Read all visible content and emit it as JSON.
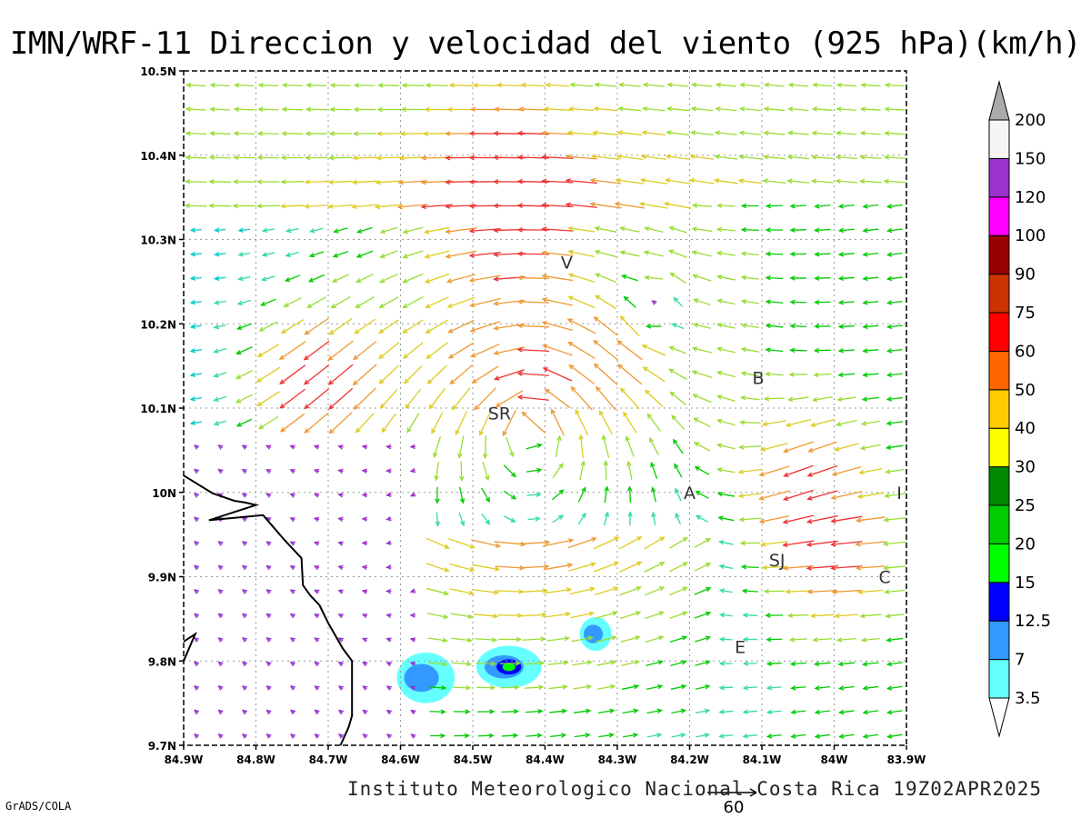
{
  "title": "IMN/WRF-11 Direccion y velocidad del viento (925 hPa)(km/h)",
  "footer": "Instituto Meteorologico Nacional Costa Rica 19Z02APR2025",
  "credit": "GrADS/COLA",
  "reference_vector": {
    "label": "60",
    "speed_kmh": 60
  },
  "map": {
    "lon_range": [
      -84.9,
      -83.9
    ],
    "lat_range": [
      9.7,
      10.5
    ],
    "lon_ticks": [
      {
        "lon": -84.9,
        "label": "84.9W"
      },
      {
        "lon": -84.8,
        "label": "84.8W"
      },
      {
        "lon": -84.7,
        "label": "84.7W"
      },
      {
        "lon": -84.6,
        "label": "84.6W"
      },
      {
        "lon": -84.5,
        "label": "84.5W"
      },
      {
        "lon": -84.4,
        "label": "84.4W"
      },
      {
        "lon": -84.3,
        "label": "84.3W"
      },
      {
        "lon": -84.2,
        "label": "84.2W"
      },
      {
        "lon": -84.1,
        "label": "84.1W"
      },
      {
        "lon": -84.0,
        "label": "84W"
      },
      {
        "lon": -83.9,
        "label": "83.9W"
      }
    ],
    "lat_ticks": [
      {
        "lat": 9.7,
        "label": "9.7N"
      },
      {
        "lat": 9.8,
        "label": "9.8N"
      },
      {
        "lat": 9.9,
        "label": "9.9N"
      },
      {
        "lat": 10.0,
        "label": "10N"
      },
      {
        "lat": 10.1,
        "label": "10.1N"
      },
      {
        "lat": 10.2,
        "label": "10.2N"
      },
      {
        "lat": 10.3,
        "label": "10.3N"
      },
      {
        "lat": 10.4,
        "label": "10.4N"
      },
      {
        "lat": 10.5,
        "label": "10.5N"
      }
    ],
    "grid": "dotted",
    "cities": [
      {
        "label": "V",
        "lon": -84.37,
        "lat": 10.273
      },
      {
        "label": "SR",
        "lon": -84.463,
        "lat": 10.094
      },
      {
        "label": "B",
        "lon": -84.105,
        "lat": 10.136
      },
      {
        "label": "A",
        "lon": -84.2,
        "lat": 10.0
      },
      {
        "label": "I",
        "lon": -83.91,
        "lat": 10.0
      },
      {
        "label": "SJ",
        "lon": -84.079,
        "lat": 9.92
      },
      {
        "label": "C",
        "lon": -83.93,
        "lat": 9.9
      },
      {
        "label": "E",
        "lon": -84.13,
        "lat": 9.817
      }
    ],
    "coastline": [
      [
        [
          -84.9,
          10.02
        ],
        [
          -84.86,
          9.999
        ],
        [
          -84.83,
          9.99
        ],
        [
          -84.815,
          9.988
        ],
        [
          -84.8,
          9.985
        ],
        [
          -84.865,
          9.967
        ],
        [
          -84.79,
          9.973
        ],
        [
          -84.76,
          9.943
        ],
        [
          -84.737,
          9.922
        ],
        [
          -84.735,
          9.89
        ],
        [
          -84.725,
          9.878
        ],
        [
          -84.712,
          9.866
        ],
        [
          -84.7,
          9.845
        ],
        [
          -84.68,
          9.815
        ],
        [
          -84.667,
          9.8
        ],
        [
          -84.667,
          9.735
        ],
        [
          -84.672,
          9.721
        ],
        [
          -84.683,
          9.7
        ]
      ],
      [
        [
          -84.9,
          9.823
        ],
        [
          -84.884,
          9.832
        ],
        [
          -84.9,
          9.8
        ]
      ]
    ],
    "speed_field": {
      "base_speed_kmh": 18,
      "features": [
        {
          "type": "cyclone",
          "lon": -84.42,
          "lat": 10.08,
          "strength": 46,
          "radius_deg": 0.17
        },
        {
          "type": "anticyclone",
          "lon": -84.26,
          "lat": 10.2,
          "strength": 20,
          "radius_deg": 0.06
        },
        {
          "type": "cyclone",
          "lon": -84.24,
          "lat": 10.24,
          "strength": 16,
          "radius_deg": 0.05
        }
      ],
      "jets": [
        {
          "lon": -84.45,
          "lat": 10.35,
          "speed_kmh": 62,
          "direction": "from east"
        },
        {
          "lon": -84.72,
          "lat": 10.13,
          "speed_kmh": 60,
          "direction": "from northeast"
        },
        {
          "lon": -84.05,
          "lat": 10.02,
          "speed_kmh": 46,
          "direction": "from northeast"
        },
        {
          "lon": -84.0,
          "lat": 9.93,
          "speed_kmh": 44,
          "direction": "from east"
        }
      ],
      "calm_zone": {
        "lon_max": -84.58,
        "lat_max": 10.07,
        "speed_kmh": 4
      }
    },
    "low_speed_shaded": [
      {
        "lon": -84.565,
        "lat": 9.78,
        "rx_deg": 0.04,
        "ry_deg": 0.03
      },
      {
        "lon": -84.45,
        "lat": 9.793,
        "rx_deg": 0.045,
        "ry_deg": 0.025
      },
      {
        "lon": -84.33,
        "lat": 9.832,
        "rx_deg": 0.022,
        "ry_deg": 0.02
      }
    ]
  },
  "colorbar": {
    "bins": [
      {
        "min": 0,
        "max": 3.5,
        "color": "#ffffff"
      },
      {
        "min": 3.5,
        "max": 7,
        "color": "#66ffff"
      },
      {
        "min": 7,
        "max": 12.5,
        "color": "#3399ff"
      },
      {
        "min": 12.5,
        "max": 15,
        "color": "#0000ff"
      },
      {
        "min": 15,
        "max": 20,
        "color": "#00ff00"
      },
      {
        "min": 20,
        "max": 25,
        "color": "#00cc00"
      },
      {
        "min": 25,
        "max": 30,
        "color": "#008800"
      },
      {
        "min": 30,
        "max": 40,
        "color": "#ffff00"
      },
      {
        "min": 40,
        "max": 50,
        "color": "#ffcc00"
      },
      {
        "min": 50,
        "max": 60,
        "color": "#ff6600"
      },
      {
        "min": 60,
        "max": 75,
        "color": "#ff0000"
      },
      {
        "min": 75,
        "max": 90,
        "color": "#cc3300"
      },
      {
        "min": 90,
        "max": 100,
        "color": "#990000"
      },
      {
        "min": 100,
        "max": 120,
        "color": "#ff00ff"
      },
      {
        "min": 120,
        "max": 150,
        "color": "#9933cc"
      },
      {
        "min": 150,
        "max": 200,
        "color": "#f5f5f5"
      },
      {
        "min": 200,
        "max": 999,
        "color": "#aaaaaa"
      }
    ],
    "labels": [
      "3.5",
      "7",
      "12.5",
      "15",
      "20",
      "25",
      "30",
      "40",
      "50",
      "60",
      "75",
      "90",
      "100",
      "120",
      "150",
      "200"
    ]
  },
  "vector_colors": [
    {
      "max": 3.5,
      "color": "#9933cc"
    },
    {
      "max": 7,
      "color": "#9933cc"
    },
    {
      "max": 12.5,
      "color": "#0000ff"
    },
    {
      "max": 15,
      "color": "#3399ff"
    },
    {
      "max": 20,
      "color": "#00cccc"
    },
    {
      "max": 25,
      "color": "#33dd99"
    },
    {
      "max": 30,
      "color": "#00cc00"
    },
    {
      "max": 40,
      "color": "#99dd33"
    },
    {
      "max": 50,
      "color": "#ddcc22"
    },
    {
      "max": 60,
      "color": "#ee9933"
    },
    {
      "max": 999,
      "color": "#ee3333"
    }
  ]
}
